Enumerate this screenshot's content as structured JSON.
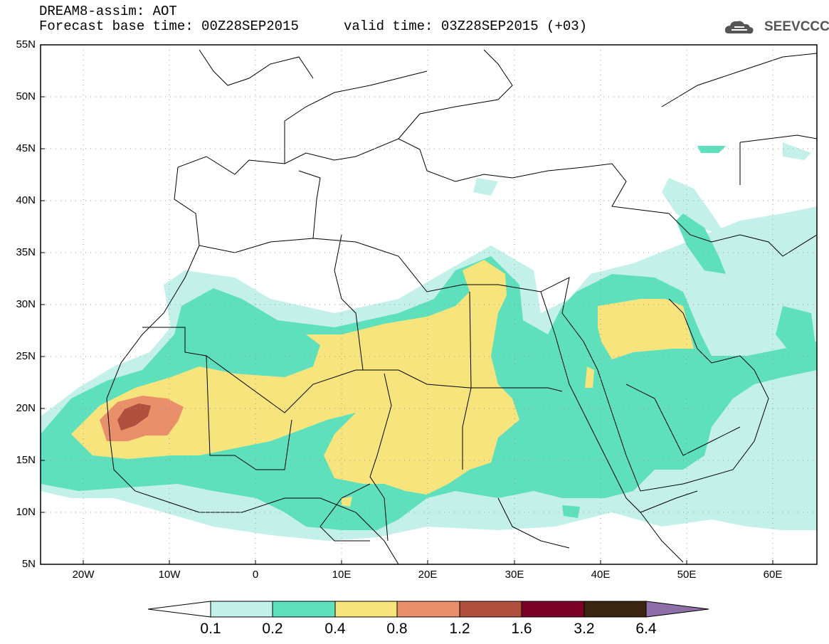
{
  "header": {
    "title_line1": "DREAM8-assim: AOT",
    "title_line2": "Forecast base time: 00Z28SEP2015",
    "valid_time": "valid time: 03Z28SEP2015 (+03)",
    "logo_text": "SEEVCCC",
    "logo_icon": "cloud-logo-icon"
  },
  "map": {
    "lat_labels": [
      "55N",
      "50N",
      "45N",
      "40N",
      "35N",
      "30N",
      "25N",
      "20N",
      "15N",
      "10N",
      "5N"
    ],
    "lon_labels": [
      "20W",
      "10W",
      "0",
      "10E",
      "20E",
      "30E",
      "40E",
      "50E",
      "60E"
    ],
    "lat_range": [
      5,
      55
    ],
    "lon_range": [
      -25,
      65
    ],
    "grid": "dotted",
    "colors": {
      "c01": "#c4f0ea",
      "c02": "#5ee0bd",
      "c04": "#f7e47c",
      "c08": "#e9906a",
      "c12": "#b04f3d",
      "c16": "#7a0025",
      "c32": "#3a2412",
      "c64": "#8f6fa8"
    }
  },
  "colorbar": {
    "labels": [
      "0.1",
      "0.2",
      "0.4",
      "0.8",
      "1.2",
      "1.6",
      "3.2",
      "6.4"
    ],
    "colors": [
      "#c4f0ea",
      "#5ee0bd",
      "#f7e47c",
      "#e9906a",
      "#b04f3d",
      "#7a0025",
      "#3a2412"
    ],
    "under_color": "#ffffff",
    "over_color": "#8f6fa8"
  }
}
